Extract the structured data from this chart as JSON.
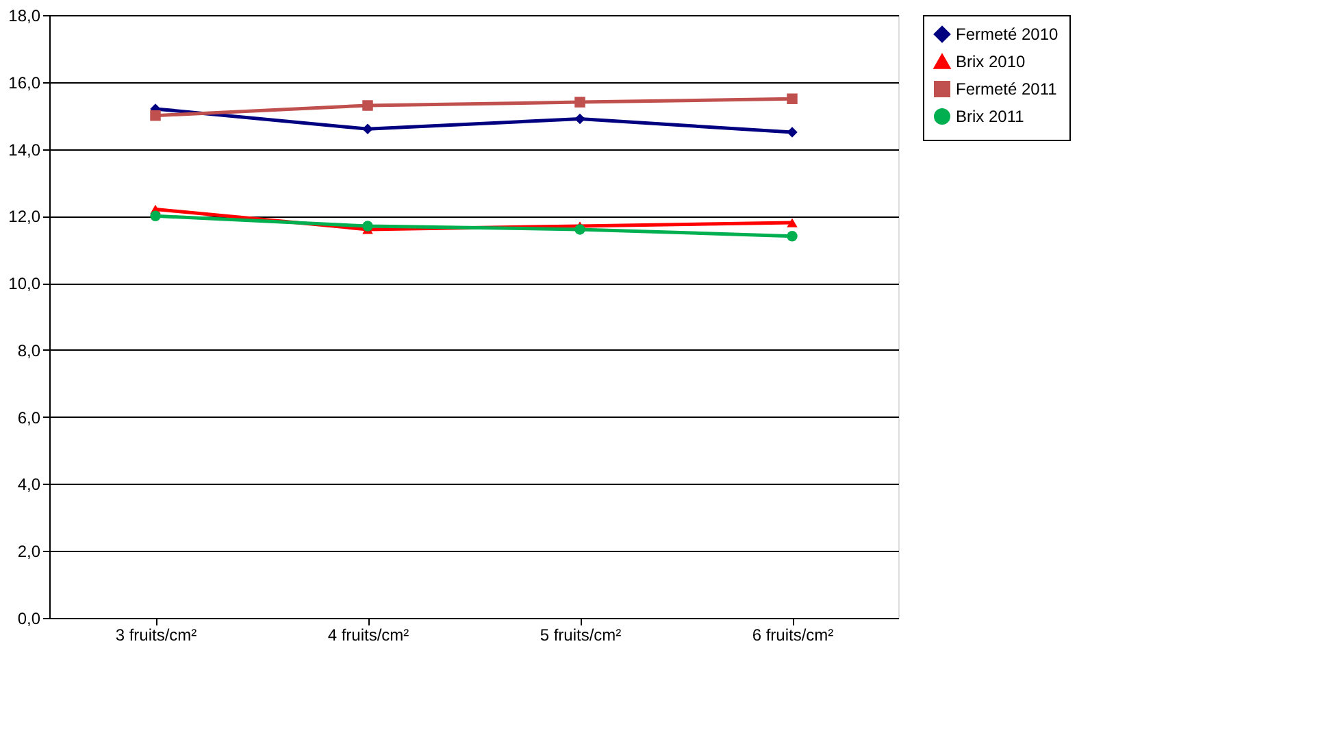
{
  "chart_data": {
    "type": "line",
    "categories": [
      "3 fruits/cm²",
      "4 fruits/cm²",
      "5 fruits/cm²",
      "6 fruits/cm²"
    ],
    "series": [
      {
        "name": "Fermeté 2010",
        "color": "#000080",
        "marker": "diamond",
        "values": [
          15.2,
          14.6,
          14.9,
          14.5
        ]
      },
      {
        "name": "Brix 2010",
        "color": "#ff0000",
        "marker": "triangle",
        "values": [
          12.2,
          11.6,
          11.7,
          11.8
        ]
      },
      {
        "name": "Fermeté 2011",
        "color": "#c0504d",
        "marker": "square",
        "values": [
          15.0,
          15.3,
          15.4,
          15.5
        ]
      },
      {
        "name": "Brix 2011",
        "color": "#00b050",
        "marker": "circle",
        "values": [
          12.0,
          11.7,
          11.6,
          11.4
        ]
      }
    ],
    "ylim": [
      0,
      18
    ],
    "yticks": [
      {
        "value": 0,
        "label": "0,0"
      },
      {
        "value": 2,
        "label": "2,0"
      },
      {
        "value": 4,
        "label": "4,0"
      },
      {
        "value": 6,
        "label": "6,0"
      },
      {
        "value": 8,
        "label": "8,0"
      },
      {
        "value": 10,
        "label": "10,0"
      },
      {
        "value": 12,
        "label": "12,0"
      },
      {
        "value": 14,
        "label": "14,0"
      },
      {
        "value": 16,
        "label": "16,0"
      },
      {
        "value": 18,
        "label": "18,0"
      }
    ],
    "grid": "y",
    "legend": "right"
  }
}
